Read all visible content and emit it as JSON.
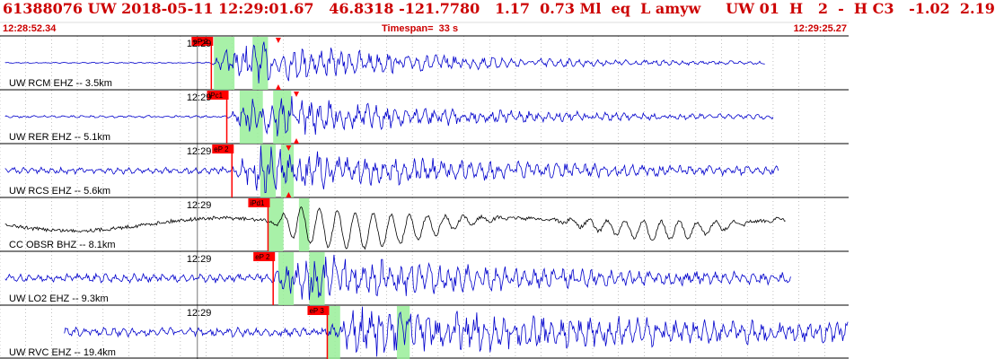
{
  "header": {
    "event_line": "61388076 UW 2018-05-11 12:29:01.67   46.8318 -121.7780   1.17  0.73 Ml  eq  L amyw     UW 01  H   2  -  H C3   -1.02  2.19",
    "start_time": "12:28:52.34",
    "timespan": "Timespan=  33 s",
    "end_time": "12:29:25.27"
  },
  "colors": {
    "header_text": "#cc0000",
    "trace": "#0000cc",
    "trace_alt": "#000000",
    "pick": "#ff0000",
    "band": "#99ee99",
    "grid": "#999999"
  },
  "chart_data": {
    "type": "seismogram",
    "x_unit": "seconds after 12:28:52.34",
    "xlim": [
      0,
      32.93
    ],
    "minute_mark_label": "12:29",
    "traces": [
      {
        "label": "UW RCM EHZ -- 3.5km",
        "pick_label": "eP 2",
        "pick_time": 8.2,
        "s_time": 10.8,
        "bands": [
          [
            8.3,
            9.1
          ],
          [
            9.8,
            10.4
          ]
        ],
        "end_time": 29.7,
        "color": "trace"
      },
      {
        "label": "UW RER EHZ -- 5.1km",
        "pick_label": "iPc1",
        "pick_time": 8.8,
        "s_time": 11.5,
        "bands": [
          [
            9.3,
            10.2
          ],
          [
            10.6,
            11.3
          ]
        ],
        "end_time": 30.0,
        "color": "trace"
      },
      {
        "label": "UW RCS EHZ -- 5.6km",
        "pick_label": "eP 2",
        "pick_time": 9.0,
        "s_time": 11.2,
        "bands": [
          [
            10.1,
            10.7
          ],
          [
            10.9,
            11.4
          ]
        ],
        "end_time": 30.2,
        "color": "trace"
      },
      {
        "label": "CC OBSR BHZ -- 8.1km",
        "pick_label": "iPd1",
        "pick_time": 10.4,
        "s_time": null,
        "bands": [
          [
            10.4,
            11.0
          ],
          [
            11.6,
            12.0
          ]
        ],
        "end_time": 30.5,
        "color": "trace_alt"
      },
      {
        "label": "UW LO2 EHZ -- 9.3km",
        "pick_label": "eP 2",
        "pick_time": 10.6,
        "s_time": null,
        "bands": [
          [
            10.8,
            11.4
          ],
          [
            12.0,
            12.6
          ]
        ],
        "end_time": 30.7,
        "color": "trace"
      },
      {
        "label": "UW RVC EHZ -- 19.4km",
        "pick_label": "eP 3",
        "pick_time": 12.7,
        "s_time": null,
        "bands": [
          [
            12.7,
            13.2
          ],
          [
            15.4,
            15.9
          ]
        ],
        "end_time": 32.93,
        "color": "trace"
      }
    ]
  }
}
